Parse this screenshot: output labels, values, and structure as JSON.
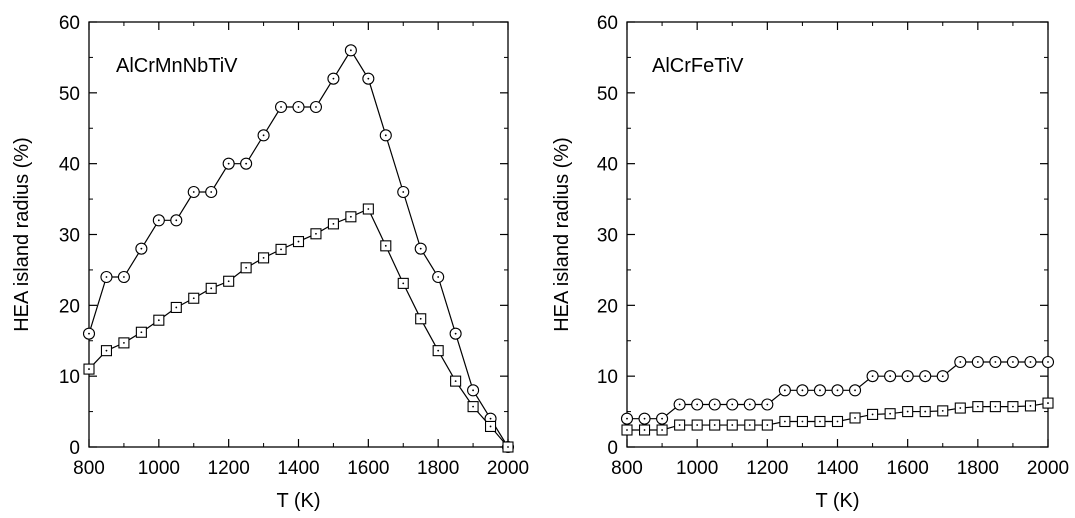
{
  "chart_data": [
    {
      "type": "line",
      "title": "AlCrMnNbTiV",
      "xlabel": "T (K)",
      "ylabel": "HEA island radius (%)",
      "xlim": [
        800,
        2000
      ],
      "ylim": [
        0,
        60
      ],
      "xticks": [
        800,
        1000,
        1200,
        1400,
        1600,
        1800,
        2000
      ],
      "yticks": [
        0,
        10,
        20,
        30,
        40,
        50,
        60
      ],
      "grid": false,
      "series": [
        {
          "marker": "circle",
          "x": [
            800,
            850,
            900,
            950,
            1000,
            1050,
            1100,
            1150,
            1200,
            1250,
            1300,
            1350,
            1400,
            1450,
            1500,
            1550,
            1600,
            1650,
            1700,
            1750,
            1800,
            1850,
            1900,
            1950,
            2000
          ],
          "y": [
            16,
            24,
            24,
            28,
            32,
            32,
            36,
            36,
            40,
            40,
            44,
            48,
            48,
            48,
            52,
            56,
            52,
            44,
            36,
            28,
            24,
            16,
            8,
            4,
            0
          ]
        },
        {
          "marker": "square",
          "x": [
            800,
            850,
            900,
            950,
            1000,
            1050,
            1100,
            1150,
            1200,
            1250,
            1300,
            1350,
            1400,
            1450,
            1500,
            1550,
            1600,
            1650,
            1700,
            1750,
            1800,
            1850,
            1900,
            1950,
            2000
          ],
          "y": [
            11,
            13.6,
            14.7,
            16.2,
            17.9,
            19.7,
            21,
            22.4,
            23.4,
            25.3,
            26.7,
            27.9,
            29,
            30.1,
            31.5,
            32.5,
            33.6,
            28.4,
            23.1,
            18.1,
            13.6,
            9.3,
            5.7,
            2.9,
            0
          ]
        }
      ]
    },
    {
      "type": "line",
      "title": "AlCrFeTiV",
      "xlabel": "T (K)",
      "ylabel": "HEA island radius (%)",
      "xlim": [
        800,
        2000
      ],
      "ylim": [
        0,
        60
      ],
      "xticks": [
        800,
        1000,
        1200,
        1400,
        1600,
        1800,
        2000
      ],
      "yticks": [
        0,
        10,
        20,
        30,
        40,
        50,
        60
      ],
      "grid": false,
      "series": [
        {
          "marker": "circle",
          "x": [
            800,
            850,
            900,
            950,
            1000,
            1050,
            1100,
            1150,
            1200,
            1250,
            1300,
            1350,
            1400,
            1450,
            1500,
            1550,
            1600,
            1650,
            1700,
            1750,
            1800,
            1850,
            1900,
            1950,
            2000
          ],
          "y": [
            4,
            4,
            4,
            6,
            6,
            6,
            6,
            6,
            6,
            8,
            8,
            8,
            8,
            8,
            10,
            10,
            10,
            10,
            10,
            12,
            12,
            12,
            12,
            12,
            12
          ]
        },
        {
          "marker": "square",
          "x": [
            800,
            850,
            900,
            950,
            1000,
            1050,
            1100,
            1150,
            1200,
            1250,
            1300,
            1350,
            1400,
            1450,
            1500,
            1550,
            1600,
            1650,
            1700,
            1750,
            1800,
            1850,
            1900,
            1950,
            2000
          ],
          "y": [
            2.4,
            2.4,
            2.4,
            3.1,
            3.1,
            3.1,
            3.1,
            3.1,
            3.1,
            3.6,
            3.6,
            3.6,
            3.6,
            4.1,
            4.6,
            4.7,
            5,
            5,
            5.1,
            5.5,
            5.7,
            5.7,
            5.7,
            5.8,
            6.2
          ]
        }
      ]
    }
  ]
}
